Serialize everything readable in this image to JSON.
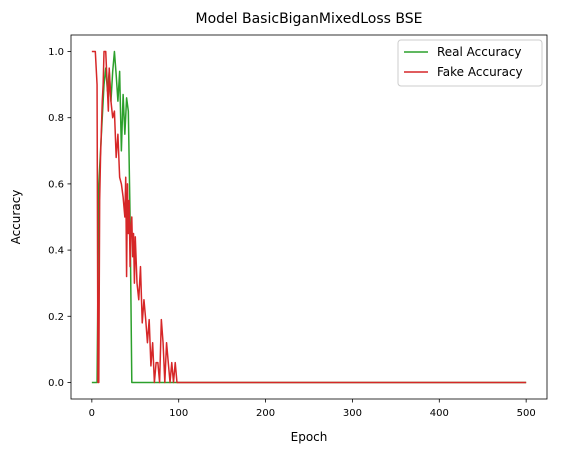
{
  "chart_data": {
    "type": "line",
    "title": "Model BasicBiganMixedLoss BSE",
    "xlabel": "Epoch",
    "ylabel": "Accuracy",
    "xlim": [
      -24,
      524
    ],
    "ylim": [
      -0.05,
      1.05
    ],
    "x_ticks": [
      0,
      100,
      200,
      300,
      400,
      500
    ],
    "y_ticks": [
      0.0,
      0.2,
      0.4,
      0.6,
      0.8,
      1.0
    ],
    "x_tick_labels": [
      "0",
      "100",
      "200",
      "300",
      "400",
      "500"
    ],
    "y_tick_labels": [
      "0.0",
      "0.2",
      "0.4",
      "0.6",
      "0.8",
      "1.0"
    ],
    "grid": false,
    "legend_position": "top-right",
    "series": [
      {
        "name": "Real Accuracy",
        "color": "#2ca02c",
        "points": [
          [
            0,
            0
          ],
          [
            6,
            0
          ],
          [
            8,
            0.6
          ],
          [
            10,
            0.7
          ],
          [
            12,
            0.8
          ],
          [
            14,
            0.9
          ],
          [
            16,
            0.95
          ],
          [
            18,
            0.88
          ],
          [
            20,
            0.94
          ],
          [
            22,
            0.85
          ],
          [
            24,
            0.94
          ],
          [
            26,
            1.0
          ],
          [
            28,
            0.93
          ],
          [
            30,
            0.85
          ],
          [
            32,
            0.94
          ],
          [
            34,
            0.7
          ],
          [
            36,
            0.87
          ],
          [
            38,
            0.75
          ],
          [
            40,
            0.86
          ],
          [
            42,
            0.82
          ],
          [
            44,
            0.5
          ],
          [
            46,
            0.0
          ],
          [
            500,
            0.0
          ]
        ]
      },
      {
        "name": "Fake Accuracy",
        "color": "#d62728",
        "points": [
          [
            0,
            1.0
          ],
          [
            4,
            1.0
          ],
          [
            6,
            0.9
          ],
          [
            7,
            0.0
          ],
          [
            8,
            0.0
          ],
          [
            9,
            0.55
          ],
          [
            10,
            0.68
          ],
          [
            12,
            0.85
          ],
          [
            13,
            0.9
          ],
          [
            14,
            1.0
          ],
          [
            16,
            1.0
          ],
          [
            18,
            0.88
          ],
          [
            19,
            0.82
          ],
          [
            20,
            0.95
          ],
          [
            22,
            0.85
          ],
          [
            24,
            0.8
          ],
          [
            26,
            0.82
          ],
          [
            28,
            0.68
          ],
          [
            30,
            0.75
          ],
          [
            32,
            0.62
          ],
          [
            34,
            0.6
          ],
          [
            36,
            0.56
          ],
          [
            38,
            0.5
          ],
          [
            39,
            0.62
          ],
          [
            40,
            0.32
          ],
          [
            41,
            0.6
          ],
          [
            42,
            0.45
          ],
          [
            43,
            0.55
          ],
          [
            44,
            0.35
          ],
          [
            45,
            0.47
          ],
          [
            46,
            0.5
          ],
          [
            47,
            0.38
          ],
          [
            48,
            0.45
          ],
          [
            49,
            0.3
          ],
          [
            50,
            0.44
          ],
          [
            52,
            0.3
          ],
          [
            54,
            0.25
          ],
          [
            56,
            0.35
          ],
          [
            58,
            0.18
          ],
          [
            60,
            0.25
          ],
          [
            62,
            0.19
          ],
          [
            64,
            0.12
          ],
          [
            66,
            0.19
          ],
          [
            68,
            0.05
          ],
          [
            70,
            0.12
          ],
          [
            72,
            0.0
          ],
          [
            74,
            0.06
          ],
          [
            76,
            0.06
          ],
          [
            78,
            0.0
          ],
          [
            80,
            0.19
          ],
          [
            82,
            0.12
          ],
          [
            84,
            0.0
          ],
          [
            86,
            0.12
          ],
          [
            88,
            0.06
          ],
          [
            90,
            0.0
          ],
          [
            92,
            0.06
          ],
          [
            94,
            0.0
          ],
          [
            96,
            0.06
          ],
          [
            98,
            0.0
          ],
          [
            100,
            0.0
          ],
          [
            500,
            0.0
          ]
        ]
      }
    ]
  }
}
